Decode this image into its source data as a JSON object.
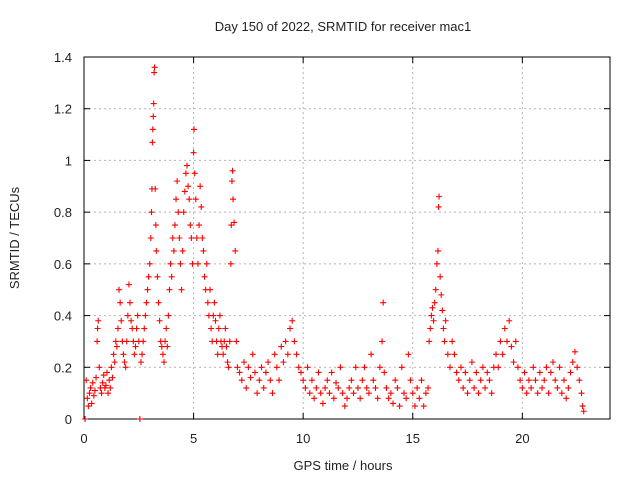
{
  "chart_data": {
    "type": "scatter",
    "title": "Day 150 of 2022, SRMTID for receiver mac1",
    "xlabel": "GPS time / hours",
    "ylabel": "SRMTID / TECUs",
    "xlim": [
      0,
      24
    ],
    "ylim": [
      0,
      1.4
    ],
    "x_ticks": [
      0,
      5,
      10,
      15,
      20
    ],
    "x_tick_labels": [
      "0",
      "5",
      "10",
      "15",
      "20"
    ],
    "y_ticks": [
      0,
      0.2,
      0.4,
      0.6,
      0.8,
      1.0,
      1.2,
      1.4
    ],
    "y_tick_labels": [
      "0",
      "0.2",
      "0.4",
      "0.6",
      "0.8",
      "1",
      "1.2",
      "1.4"
    ],
    "grid": true,
    "marker": "plus",
    "color": "#ff0000",
    "series": [
      {
        "name": "SRMTID",
        "points": [
          [
            0.05,
            0.0
          ],
          [
            0.1,
            0.15
          ],
          [
            0.15,
            0.08
          ],
          [
            0.2,
            0.05
          ],
          [
            0.25,
            0.1
          ],
          [
            0.3,
            0.12
          ],
          [
            0.35,
            0.06
          ],
          [
            0.4,
            0.14
          ],
          [
            0.45,
            0.09
          ],
          [
            0.5,
            0.11
          ],
          [
            0.55,
            0.16
          ],
          [
            0.6,
            0.3
          ],
          [
            0.62,
            0.35
          ],
          [
            0.65,
            0.38
          ],
          [
            0.7,
            0.2
          ],
          [
            0.75,
            0.12
          ],
          [
            0.8,
            0.1
          ],
          [
            0.85,
            0.14
          ],
          [
            0.9,
            0.17
          ],
          [
            0.95,
            0.12
          ],
          [
            1.0,
            0.13
          ],
          [
            1.05,
            0.18
          ],
          [
            1.1,
            0.1
          ],
          [
            1.15,
            0.15
          ],
          [
            1.2,
            0.12
          ],
          [
            1.25,
            0.2
          ],
          [
            1.3,
            0.16
          ],
          [
            1.35,
            0.25
          ],
          [
            1.4,
            0.22
          ],
          [
            1.45,
            0.3
          ],
          [
            1.5,
            0.28
          ],
          [
            1.55,
            0.35
          ],
          [
            1.6,
            0.5
          ],
          [
            1.65,
            0.45
          ],
          [
            1.7,
            0.38
          ],
          [
            1.75,
            0.3
          ],
          [
            1.8,
            0.25
          ],
          [
            1.85,
            0.22
          ],
          [
            1.9,
            0.2
          ],
          [
            1.95,
            0.3
          ],
          [
            2.0,
            0.4
          ],
          [
            2.05,
            0.52
          ],
          [
            2.1,
            0.45
          ],
          [
            2.15,
            0.38
          ],
          [
            2.2,
            0.35
          ],
          [
            2.25,
            0.3
          ],
          [
            2.3,
            0.25
          ],
          [
            2.35,
            0.28
          ],
          [
            2.4,
            0.35
          ],
          [
            2.45,
            0.4
          ],
          [
            2.5,
            0.3
          ],
          [
            2.55,
            0.0
          ],
          [
            2.6,
            0.22
          ],
          [
            2.65,
            0.25
          ],
          [
            2.7,
            0.3
          ],
          [
            2.75,
            0.35
          ],
          [
            2.8,
            0.4
          ],
          [
            2.85,
            0.45
          ],
          [
            2.9,
            0.5
          ],
          [
            2.95,
            0.55
          ],
          [
            3.0,
            0.6
          ],
          [
            3.05,
            0.7
          ],
          [
            3.08,
            0.8
          ],
          [
            3.1,
            0.89
          ],
          [
            3.12,
            1.07
          ],
          [
            3.14,
            1.12
          ],
          [
            3.16,
            1.17
          ],
          [
            3.18,
            1.22
          ],
          [
            3.2,
            1.34
          ],
          [
            3.22,
            1.36
          ],
          [
            3.25,
            0.89
          ],
          [
            3.28,
            0.75
          ],
          [
            3.3,
            0.65
          ],
          [
            3.35,
            0.55
          ],
          [
            3.4,
            0.45
          ],
          [
            3.45,
            0.38
          ],
          [
            3.5,
            0.3
          ],
          [
            3.55,
            0.28
          ],
          [
            3.6,
            0.25
          ],
          [
            3.65,
            0.22
          ],
          [
            3.7,
            0.3
          ],
          [
            3.75,
            0.35
          ],
          [
            3.8,
            0.28
          ],
          [
            3.85,
            0.4
          ],
          [
            3.9,
            0.5
          ],
          [
            3.95,
            0.6
          ],
          [
            4.0,
            0.55
          ],
          [
            4.05,
            0.7
          ],
          [
            4.1,
            0.65
          ],
          [
            4.15,
            0.75
          ],
          [
            4.2,
            0.85
          ],
          [
            4.25,
            0.92
          ],
          [
            4.3,
            0.8
          ],
          [
            4.35,
            0.7
          ],
          [
            4.4,
            0.6
          ],
          [
            4.45,
            0.5
          ],
          [
            4.5,
            0.65
          ],
          [
            4.55,
            0.8
          ],
          [
            4.6,
            0.88
          ],
          [
            4.65,
            0.95
          ],
          [
            4.7,
            0.98
          ],
          [
            4.75,
            0.9
          ],
          [
            4.8,
            0.85
          ],
          [
            4.85,
            0.75
          ],
          [
            4.9,
            0.7
          ],
          [
            4.95,
            0.6
          ],
          [
            5.0,
            1.03
          ],
          [
            5.02,
            1.12
          ],
          [
            5.05,
            0.95
          ],
          [
            5.1,
            0.85
          ],
          [
            5.15,
            0.7
          ],
          [
            5.2,
            0.6
          ],
          [
            5.25,
            0.75
          ],
          [
            5.3,
            0.9
          ],
          [
            5.35,
            0.82
          ],
          [
            5.4,
            0.7
          ],
          [
            5.45,
            0.65
          ],
          [
            5.5,
            0.55
          ],
          [
            5.55,
            0.5
          ],
          [
            5.6,
            0.6
          ],
          [
            5.65,
            0.45
          ],
          [
            5.7,
            0.4
          ],
          [
            5.75,
            0.5
          ],
          [
            5.8,
            0.35
          ],
          [
            5.85,
            0.3
          ],
          [
            5.9,
            0.4
          ],
          [
            5.95,
            0.45
          ],
          [
            6.0,
            0.38
          ],
          [
            6.05,
            0.3
          ],
          [
            6.1,
            0.25
          ],
          [
            6.15,
            0.35
          ],
          [
            6.2,
            0.4
          ],
          [
            6.25,
            0.3
          ],
          [
            6.3,
            0.28
          ],
          [
            6.35,
            0.25
          ],
          [
            6.4,
            0.3
          ],
          [
            6.45,
            0.35
          ],
          [
            6.5,
            0.28
          ],
          [
            6.55,
            0.22
          ],
          [
            6.6,
            0.2
          ],
          [
            6.65,
            0.3
          ],
          [
            6.7,
            0.6
          ],
          [
            6.72,
            0.75
          ],
          [
            6.75,
            0.92
          ],
          [
            6.78,
            0.96
          ],
          [
            6.8,
            0.85
          ],
          [
            6.85,
            0.76
          ],
          [
            6.9,
            0.65
          ],
          [
            6.95,
            0.3
          ],
          [
            7.0,
            0.2
          ],
          [
            7.1,
            0.18
          ],
          [
            7.2,
            0.15
          ],
          [
            7.3,
            0.22
          ],
          [
            7.4,
            0.12
          ],
          [
            7.5,
            0.2
          ],
          [
            7.6,
            0.16
          ],
          [
            7.7,
            0.25
          ],
          [
            7.8,
            0.18
          ],
          [
            7.9,
            0.1
          ],
          [
            8.0,
            0.15
          ],
          [
            8.1,
            0.2
          ],
          [
            8.2,
            0.12
          ],
          [
            8.3,
            0.18
          ],
          [
            8.4,
            0.22
          ],
          [
            8.5,
            0.15
          ],
          [
            8.6,
            0.1
          ],
          [
            8.7,
            0.25
          ],
          [
            8.8,
            0.2
          ],
          [
            8.9,
            0.15
          ],
          [
            9.0,
            0.28
          ],
          [
            9.1,
            0.22
          ],
          [
            9.2,
            0.3
          ],
          [
            9.3,
            0.25
          ],
          [
            9.4,
            0.35
          ],
          [
            9.5,
            0.38
          ],
          [
            9.6,
            0.3
          ],
          [
            9.7,
            0.25
          ],
          [
            9.8,
            0.2
          ],
          [
            9.9,
            0.18
          ],
          [
            10.0,
            0.15
          ],
          [
            10.1,
            0.12
          ],
          [
            10.2,
            0.2
          ],
          [
            10.3,
            0.1
          ],
          [
            10.4,
            0.15
          ],
          [
            10.5,
            0.08
          ],
          [
            10.6,
            0.12
          ],
          [
            10.7,
            0.18
          ],
          [
            10.8,
            0.1
          ],
          [
            10.9,
            0.06
          ],
          [
            11.0,
            0.12
          ],
          [
            11.1,
            0.15
          ],
          [
            11.2,
            0.1
          ],
          [
            11.3,
            0.18
          ],
          [
            11.4,
            0.08
          ],
          [
            11.5,
            0.14
          ],
          [
            11.6,
            0.12
          ],
          [
            11.7,
            0.2
          ],
          [
            11.8,
            0.1
          ],
          [
            11.9,
            0.05
          ],
          [
            12.0,
            0.08
          ],
          [
            12.1,
            0.12
          ],
          [
            12.2,
            0.15
          ],
          [
            12.3,
            0.1
          ],
          [
            12.4,
            0.2
          ],
          [
            12.5,
            0.12
          ],
          [
            12.6,
            0.08
          ],
          [
            12.7,
            0.15
          ],
          [
            12.8,
            0.2
          ],
          [
            12.9,
            0.12
          ],
          [
            13.0,
            0.1
          ],
          [
            13.1,
            0.25
          ],
          [
            13.2,
            0.15
          ],
          [
            13.3,
            0.12
          ],
          [
            13.4,
            0.08
          ],
          [
            13.5,
            0.2
          ],
          [
            13.6,
            0.3
          ],
          [
            13.65,
            0.45
          ],
          [
            13.7,
            0.18
          ],
          [
            13.8,
            0.12
          ],
          [
            13.9,
            0.08
          ],
          [
            14.0,
            0.1
          ],
          [
            14.1,
            0.06
          ],
          [
            14.2,
            0.15
          ],
          [
            14.3,
            0.12
          ],
          [
            14.4,
            0.05
          ],
          [
            14.5,
            0.2
          ],
          [
            14.6,
            0.1
          ],
          [
            14.7,
            0.08
          ],
          [
            14.8,
            0.25
          ],
          [
            14.9,
            0.15
          ],
          [
            15.0,
            0.1
          ],
          [
            15.1,
            0.05
          ],
          [
            15.2,
            0.12
          ],
          [
            15.3,
            0.08
          ],
          [
            15.4,
            0.15
          ],
          [
            15.5,
            0.05
          ],
          [
            15.6,
            0.1
          ],
          [
            15.7,
            0.12
          ],
          [
            15.75,
            0.3
          ],
          [
            15.8,
            0.35
          ],
          [
            15.85,
            0.4
          ],
          [
            15.9,
            0.43
          ],
          [
            15.95,
            0.38
          ],
          [
            16.0,
            0.45
          ],
          [
            16.05,
            0.5
          ],
          [
            16.1,
            0.6
          ],
          [
            16.15,
            0.65
          ],
          [
            16.18,
            0.82
          ],
          [
            16.2,
            0.86
          ],
          [
            16.25,
            0.55
          ],
          [
            16.3,
            0.48
          ],
          [
            16.35,
            0.42
          ],
          [
            16.4,
            0.35
          ],
          [
            16.45,
            0.3
          ],
          [
            16.5,
            0.38
          ],
          [
            16.6,
            0.25
          ],
          [
            16.7,
            0.2
          ],
          [
            16.8,
            0.3
          ],
          [
            16.9,
            0.25
          ],
          [
            17.0,
            0.18
          ],
          [
            17.1,
            0.15
          ],
          [
            17.2,
            0.2
          ],
          [
            17.3,
            0.12
          ],
          [
            17.4,
            0.18
          ],
          [
            17.5,
            0.1
          ],
          [
            17.6,
            0.15
          ],
          [
            17.7,
            0.22
          ],
          [
            17.8,
            0.12
          ],
          [
            17.9,
            0.18
          ],
          [
            18.0,
            0.1
          ],
          [
            18.1,
            0.15
          ],
          [
            18.2,
            0.2
          ],
          [
            18.3,
            0.12
          ],
          [
            18.4,
            0.18
          ],
          [
            18.5,
            0.15
          ],
          [
            18.6,
            0.1
          ],
          [
            18.7,
            0.2
          ],
          [
            18.8,
            0.25
          ],
          [
            18.9,
            0.2
          ],
          [
            19.0,
            0.3
          ],
          [
            19.1,
            0.25
          ],
          [
            19.2,
            0.35
          ],
          [
            19.3,
            0.3
          ],
          [
            19.4,
            0.38
          ],
          [
            19.5,
            0.28
          ],
          [
            19.6,
            0.22
          ],
          [
            19.7,
            0.3
          ],
          [
            19.8,
            0.2
          ],
          [
            19.9,
            0.15
          ],
          [
            20.0,
            0.12
          ],
          [
            20.1,
            0.18
          ],
          [
            20.2,
            0.1
          ],
          [
            20.3,
            0.15
          ],
          [
            20.4,
            0.12
          ],
          [
            20.5,
            0.2
          ],
          [
            20.6,
            0.15
          ],
          [
            20.7,
            0.1
          ],
          [
            20.8,
            0.18
          ],
          [
            20.9,
            0.12
          ],
          [
            21.0,
            0.15
          ],
          [
            21.1,
            0.2
          ],
          [
            21.2,
            0.1
          ],
          [
            21.3,
            0.18
          ],
          [
            21.4,
            0.22
          ],
          [
            21.5,
            0.15
          ],
          [
            21.6,
            0.12
          ],
          [
            21.7,
            0.2
          ],
          [
            21.8,
            0.1
          ],
          [
            21.9,
            0.15
          ],
          [
            22.0,
            0.08
          ],
          [
            22.1,
            0.12
          ],
          [
            22.2,
            0.18
          ],
          [
            22.3,
            0.22
          ],
          [
            22.4,
            0.26
          ],
          [
            22.5,
            0.2
          ],
          [
            22.6,
            0.15
          ],
          [
            22.7,
            0.1
          ],
          [
            22.75,
            0.05
          ],
          [
            22.8,
            0.03
          ]
        ]
      }
    ]
  }
}
